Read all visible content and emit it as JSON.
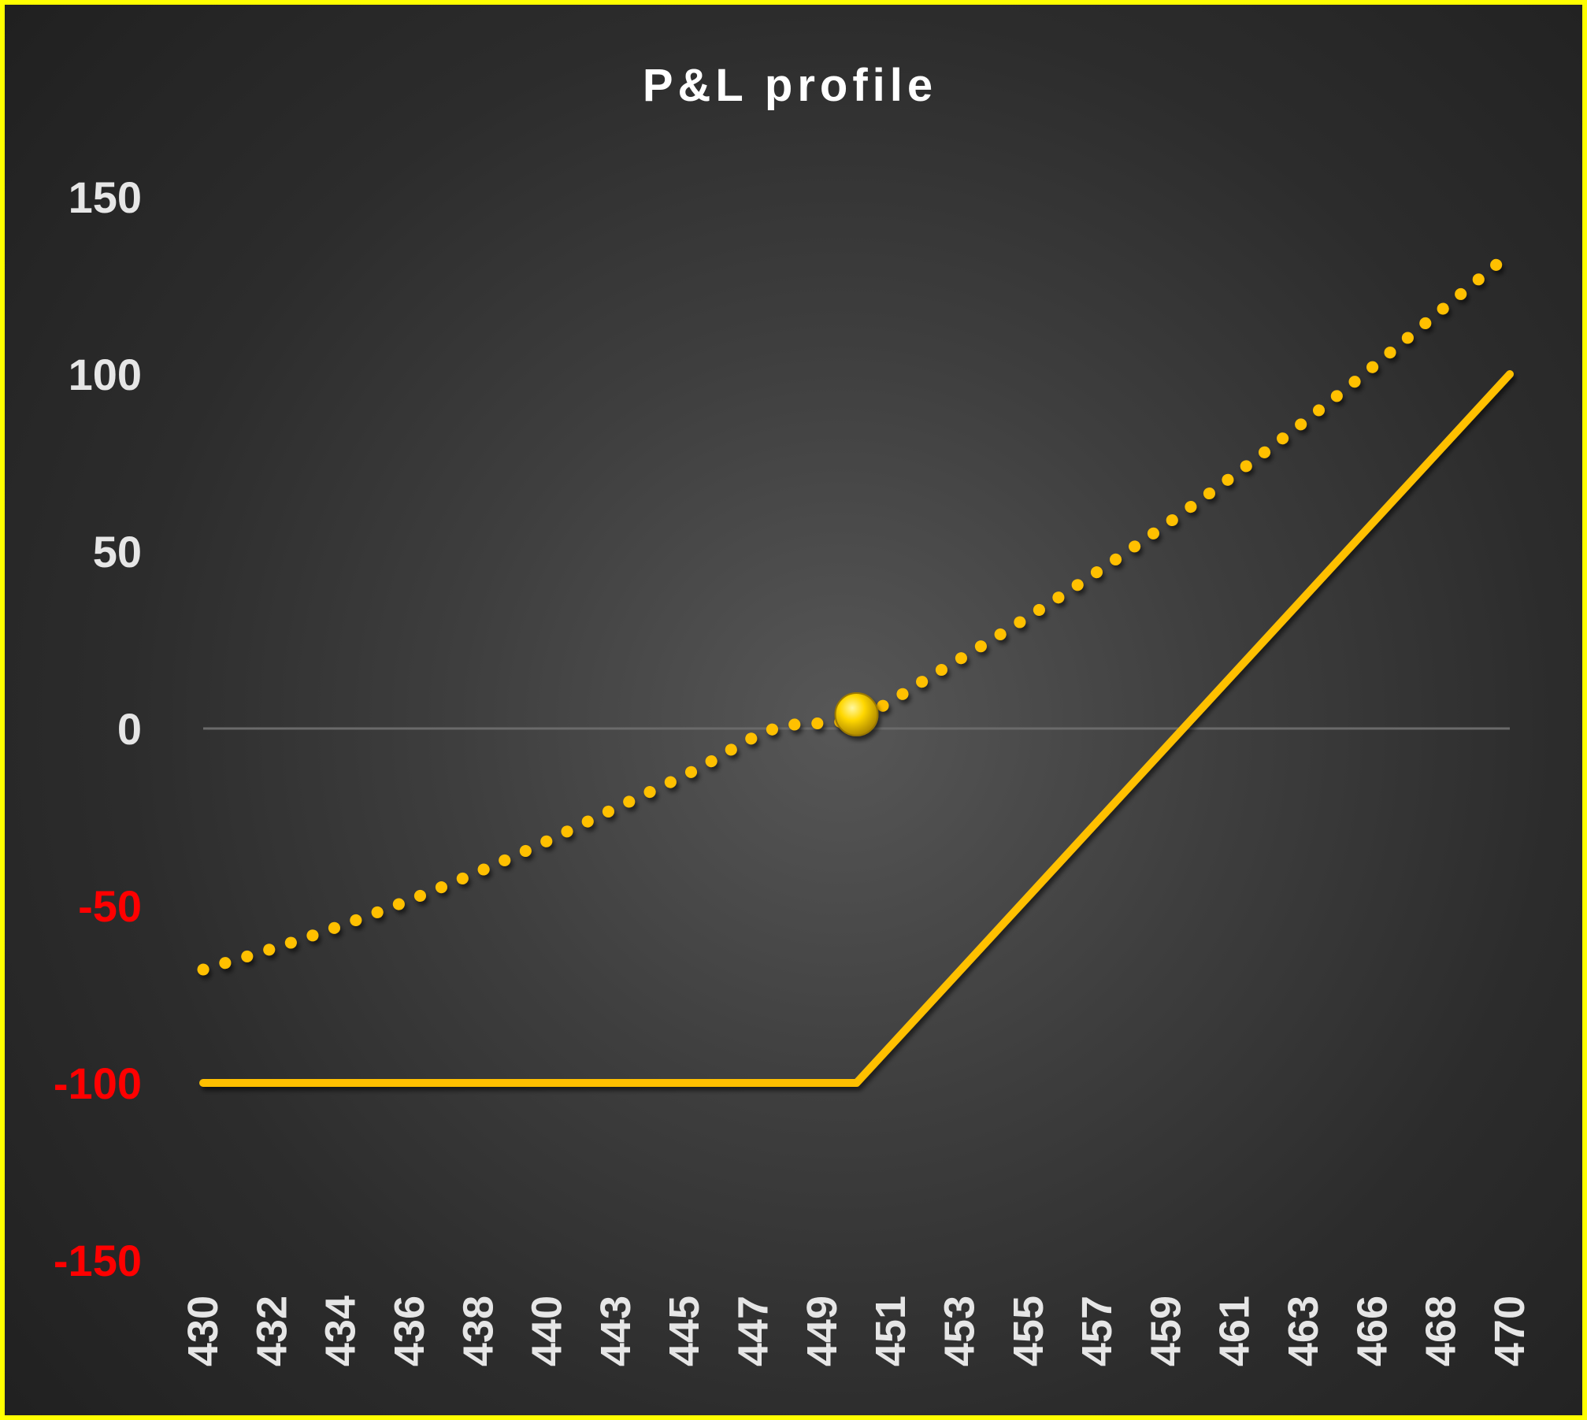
{
  "chart_data": {
    "type": "line",
    "title": "P&L profile",
    "xlabel": "",
    "ylabel": "",
    "categories": [
      "430",
      "432",
      "434",
      "436",
      "438",
      "440",
      "443",
      "445",
      "447",
      "449",
      "451",
      "453",
      "455",
      "457",
      "459",
      "461",
      "463",
      "466",
      "468",
      "470"
    ],
    "x_range": [
      430,
      470
    ],
    "ylim": [
      -150,
      150
    ],
    "y_ticks": [
      150,
      100,
      50,
      0,
      -50,
      -100,
      -150
    ],
    "grid": false,
    "legend": "none",
    "series": [
      {
        "style": "dotted",
        "x": [
          430,
          432.5,
          435,
          437.5,
          440,
          442.5,
          445,
          447.5,
          450,
          452.5,
          455,
          457.5,
          460,
          462.5,
          465,
          467.5,
          470
        ],
        "values": [
          -68,
          -61,
          -53,
          -44,
          -34,
          -23,
          -12,
          0,
          3,
          16,
          30,
          45,
          61,
          78,
          96,
          115,
          134
        ]
      },
      {
        "style": "solid",
        "x": [
          430,
          450,
          470
        ],
        "values": [
          -100,
          -100,
          100
        ]
      }
    ],
    "marker": {
      "x": 450,
      "y": 4
    },
    "colors": {
      "line": "#ffc000",
      "marker": "#ffd700",
      "positive_tick": "#e6e6e6",
      "negative_tick": "#ff0000",
      "zero_line": "#6a6a6a",
      "frame_border": "#ffff00"
    }
  }
}
